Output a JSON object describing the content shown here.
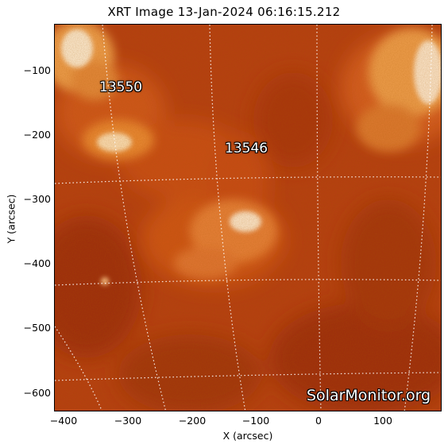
{
  "title": "XRT Image 13-Jan-2024 06:16:15.212",
  "axes": {
    "xlabel": "X (arcsec)",
    "ylabel": "Y (arcsec)",
    "xticks": [
      "−400",
      "−300",
      "−200",
      "−100",
      "0",
      "100"
    ],
    "yticks": [
      "−100",
      "−200",
      "−300",
      "−400",
      "−500",
      "−600"
    ],
    "xrange": [
      -415,
      190
    ],
    "yrange": [
      -630,
      -30
    ]
  },
  "regions": [
    "13550",
    "13546"
  ],
  "watermark": "SolarMonitor.org",
  "colors": {
    "background": "#b23a10",
    "dark": "#8a1e06",
    "mid": "#d4541a",
    "bright": "#f39a40",
    "white": "#fff3e0",
    "grid": "#ffffff"
  }
}
